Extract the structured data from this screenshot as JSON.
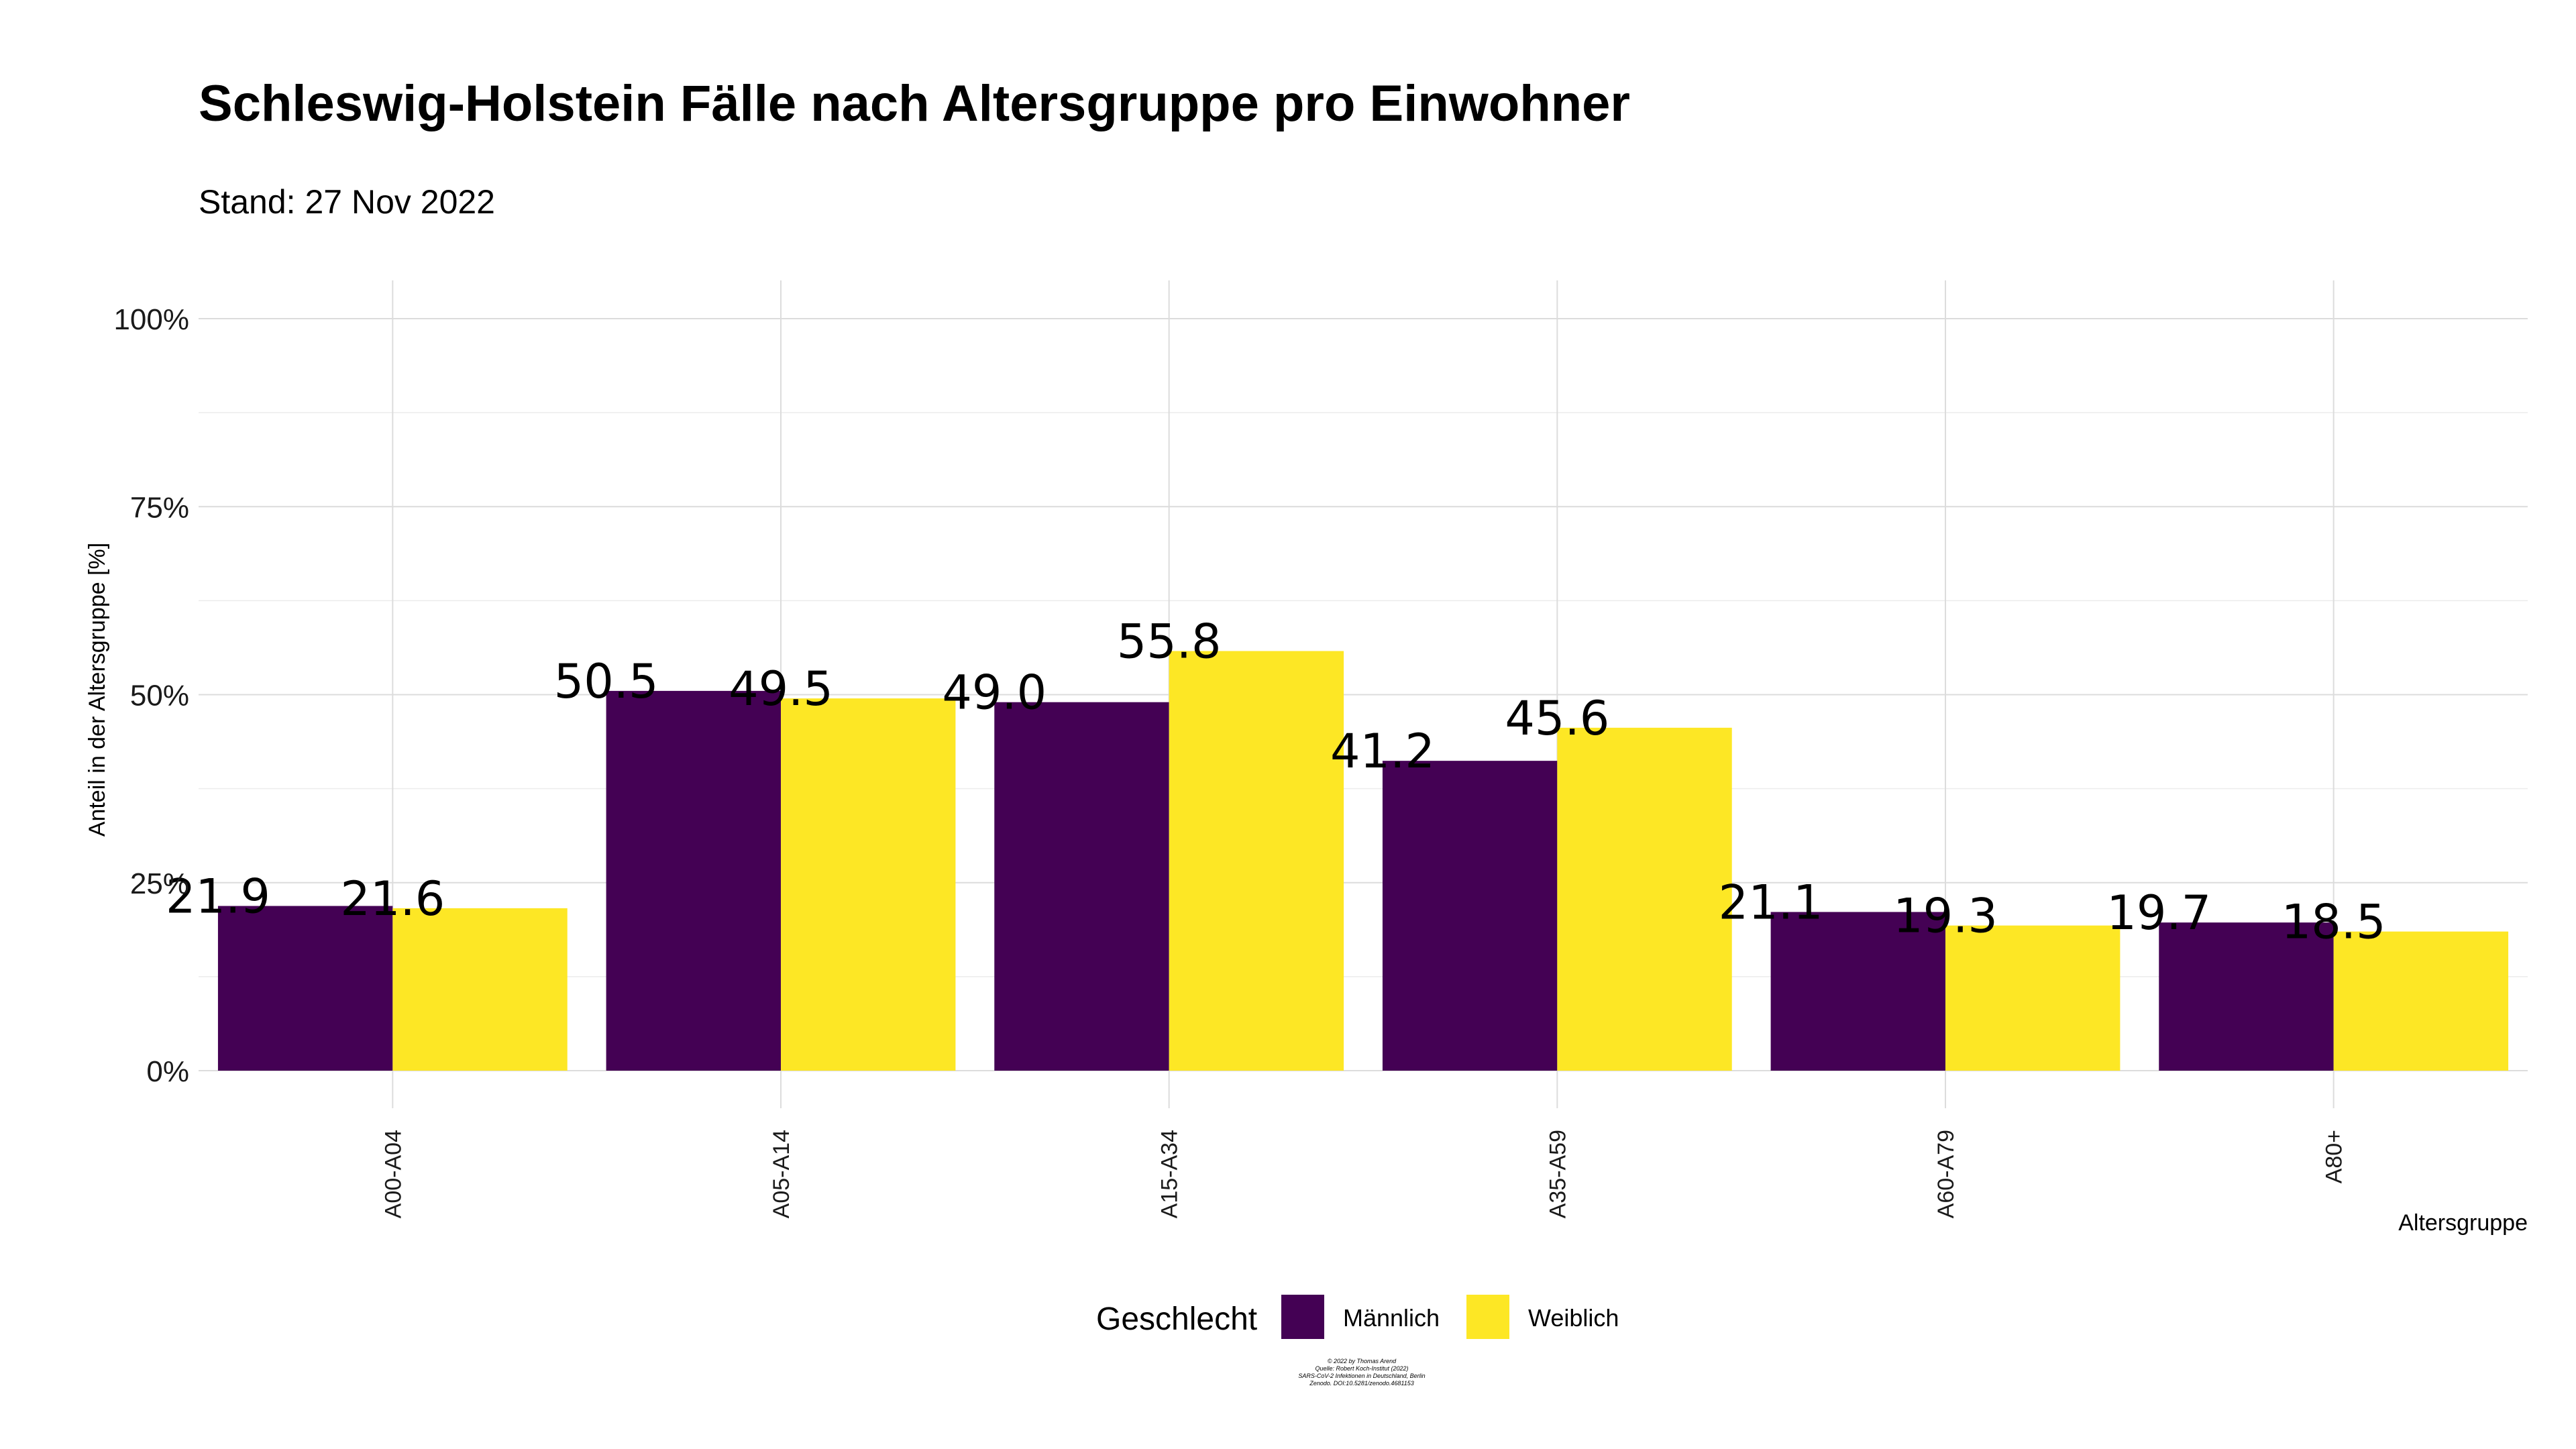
{
  "chart_data": {
    "type": "bar",
    "title": "Schleswig-Holstein Fälle nach Altersgruppe pro Einwohner",
    "subtitle": "Stand: 27 Nov 2022",
    "xlabel": "Altersgruppe",
    "ylabel": "Anteil in der Altersgruppe [%]",
    "categories": [
      "A00-A04",
      "A05-A14",
      "A15-A34",
      "A35-A59",
      "A60-A79",
      "A80+"
    ],
    "series": [
      {
        "name": "Männlich",
        "color": "#440154",
        "values": [
          21.9,
          50.5,
          49.0,
          41.2,
          21.1,
          19.7
        ],
        "labels": [
          "21.9",
          "50.5",
          "49.0",
          "41.2",
          "21.1",
          "19.7"
        ]
      },
      {
        "name": "Weiblich",
        "color": "#FDE725",
        "values": [
          21.6,
          49.5,
          55.8,
          45.6,
          19.3,
          18.5
        ],
        "labels": [
          "21.6",
          "49.5",
          "55.8",
          "45.6",
          "19.3",
          "18.5"
        ]
      }
    ],
    "ylim": [
      0,
      100
    ],
    "yticks": [
      0,
      25,
      50,
      75,
      100
    ],
    "ytick_labels": [
      "0%",
      "25%",
      "50%",
      "75%",
      "100%"
    ],
    "grid": true,
    "legend": {
      "title": "Geschlecht",
      "position": "bottom"
    },
    "caption": [
      "© 2022 by Thomas Arend",
      "Quelle: Robert Koch-Institut (2022)",
      "SARS-CoV-2 Infektionen in Deutschland, Berlin",
      "Zenodo. DOI:10.5281/zenodo.4681153"
    ]
  }
}
